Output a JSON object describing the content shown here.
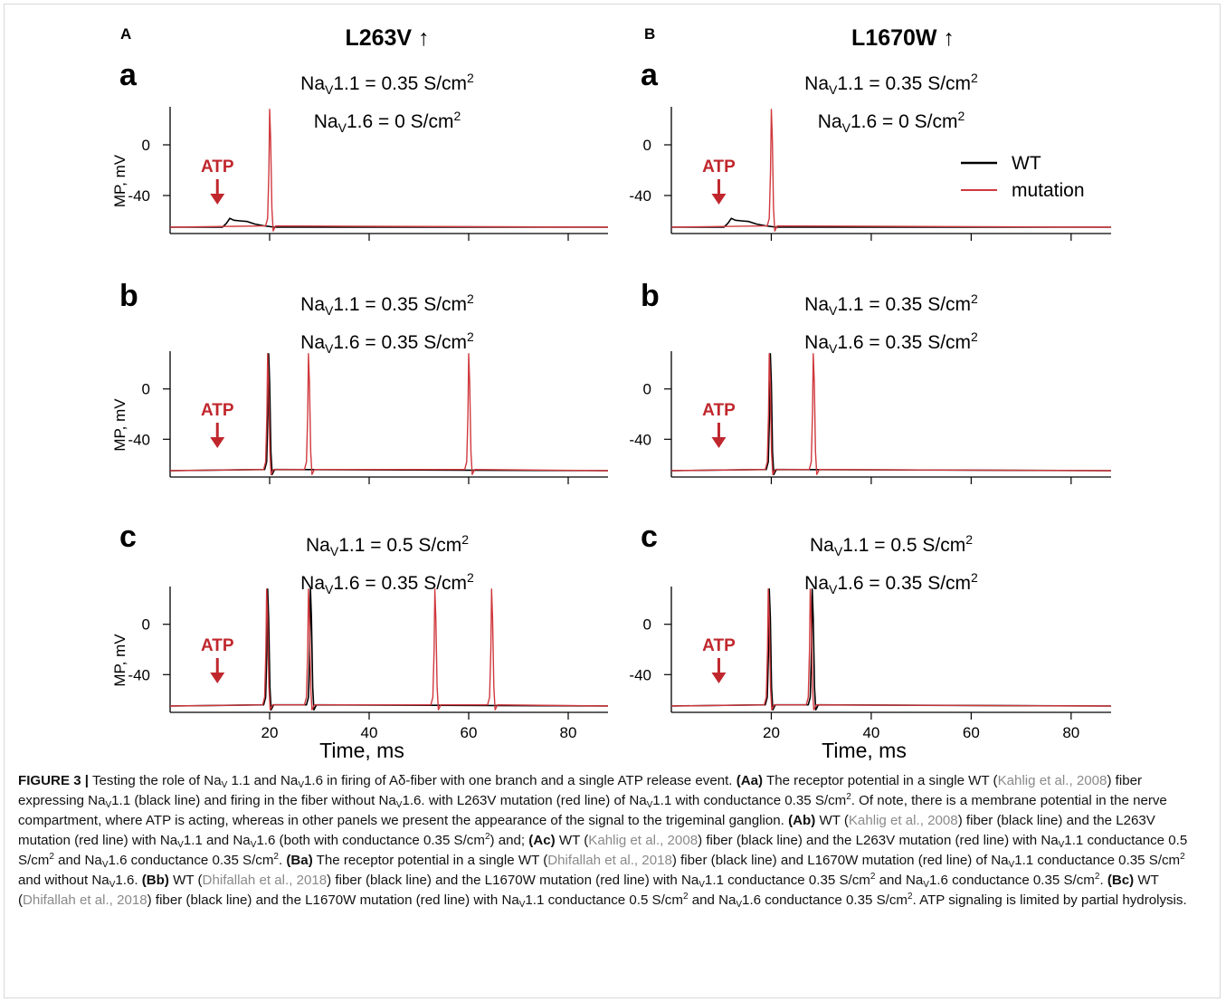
{
  "columns": [
    {
      "letter": "A",
      "mutation": "L263V"
    },
    {
      "letter": "B",
      "mutation": "L1670W"
    }
  ],
  "arrow_glyph": "↑",
  "row_letters": [
    "a",
    "b",
    "c"
  ],
  "conductance_labels": [
    {
      "nav11": "0.35",
      "nav16": "0"
    },
    {
      "nav11": "0.35",
      "nav16": "0.35"
    },
    {
      "nav11": "0.5",
      "nav16": "0.35"
    }
  ],
  "units": {
    "nav_prefix": "Na",
    "nav_sub": "V",
    "nav11_suffix": "1.1 = ",
    "nav16_suffix": "1.6 = ",
    "unit": " S/cm",
    "unit_sup": "2"
  },
  "atp_label": "ATP",
  "colors": {
    "wt": "#000000",
    "mutation": "#d0393e",
    "atp": "#c0272d"
  },
  "legend": {
    "wt": "WT",
    "mutation": "mutation"
  },
  "chart_data": [
    {
      "type": "line",
      "panel": "Aa",
      "xlabel": "",
      "ylabel": "MP, mV",
      "xlim": [
        0,
        88
      ],
      "ylim": [
        -70,
        30
      ],
      "xticks": [
        20,
        40,
        60,
        80
      ],
      "yticks": [
        0,
        -40
      ],
      "atp_time": 9.5,
      "rest": -65,
      "series": [
        {
          "name": "WT",
          "wt_bump": true,
          "spikes": []
        },
        {
          "name": "mutation",
          "spikes": [
            20
          ]
        }
      ]
    },
    {
      "type": "line",
      "panel": "Ab",
      "xlabel": "",
      "ylabel": "MP, mV",
      "xlim": [
        0,
        88
      ],
      "ylim": [
        -70,
        30
      ],
      "xticks": [
        20,
        40,
        60,
        80
      ],
      "yticks": [
        0,
        -40
      ],
      "atp_time": 9.5,
      "rest": -65,
      "series": [
        {
          "name": "WT",
          "spikes": [
            19.8
          ]
        },
        {
          "name": "mutation",
          "spikes": [
            19.6,
            27.8,
            60
          ]
        }
      ]
    },
    {
      "type": "line",
      "panel": "Ac",
      "xlabel": "Time, ms",
      "ylabel": "MP, mV",
      "xlim": [
        0,
        88
      ],
      "ylim": [
        -70,
        30
      ],
      "xticks": [
        20,
        40,
        60,
        80
      ],
      "yticks": [
        0,
        -40
      ],
      "atp_time": 9.5,
      "rest": -65,
      "series": [
        {
          "name": "WT",
          "spikes": [
            19.6,
            28.2
          ]
        },
        {
          "name": "mutation",
          "spikes": [
            19.4,
            27.8,
            53.2,
            64.6
          ]
        }
      ]
    },
    {
      "type": "line",
      "panel": "Ba",
      "xlabel": "",
      "ylabel": "",
      "xlim": [
        0,
        88
      ],
      "ylim": [
        -70,
        30
      ],
      "xticks": [
        20,
        40,
        60,
        80
      ],
      "yticks": [
        0,
        -40
      ],
      "atp_time": 9.5,
      "rest": -65,
      "series": [
        {
          "name": "WT",
          "wt_bump": true,
          "spikes": []
        },
        {
          "name": "mutation",
          "spikes": [
            20
          ]
        }
      ]
    },
    {
      "type": "line",
      "panel": "Bb",
      "xlabel": "",
      "ylabel": "",
      "xlim": [
        0,
        88
      ],
      "ylim": [
        -70,
        30
      ],
      "xticks": [
        20,
        40,
        60,
        80
      ],
      "yticks": [
        0,
        -40
      ],
      "atp_time": 9.5,
      "rest": -65,
      "series": [
        {
          "name": "WT",
          "spikes": [
            19.8
          ]
        },
        {
          "name": "mutation",
          "spikes": [
            19.6,
            28.4
          ]
        }
      ]
    },
    {
      "type": "line",
      "panel": "Bc",
      "xlabel": "Time, ms",
      "ylabel": "",
      "xlim": [
        0,
        88
      ],
      "ylim": [
        -70,
        30
      ],
      "xticks": [
        20,
        40,
        60,
        80
      ],
      "yticks": [
        0,
        -40
      ],
      "atp_time": 9.5,
      "rest": -65,
      "series": [
        {
          "name": "WT",
          "spikes": [
            19.6,
            28.2
          ]
        },
        {
          "name": "mutation",
          "spikes": [
            19.4,
            27.8
          ]
        }
      ]
    }
  ],
  "caption": {
    "figure_label": "FIGURE 3 |",
    "t1": " Testing the role of Na",
    "t2": " 1.1 and Na",
    "t3": "1.6 in firing of Aδ-fiber with one branch and a single ATP release event. ",
    "aa": "(Aa)",
    "t4": " The receptor potential in a single WT (",
    "ref_kahlig": "Kahlig et al., 2008",
    "t5": ") fiber expressing Na",
    "t6": "1.1 (black line) and firing in the fiber without Na",
    "t7": "1.6. with L263V mutation (red line) of Na",
    "t8": "1.1 with conductance 0.35 S/cm",
    "t9": ". Of note, there is a membrane potential in the nerve compartment, where ATP is acting, whereas in other panels we present the appearance of the signal to the trigeminal ganglion. ",
    "ab": "(Ab)",
    "t10": " WT (",
    "t11": ") fiber (black line) and the L263V mutation (red line) with Na",
    "t12": "1.1 and Na",
    "t13": "1.6 (both with conductance 0.35 S/cm",
    "t14": ") and; ",
    "ac": "(Ac)",
    "t15": ") fiber (black line) and the L263V mutation (red line) with Na",
    "t16": "1.1 conductance 0.5 S/cm",
    "t17": " and Na",
    "t18": "1.6 conductance 0.35 S/cm",
    "t19": ". ",
    "ba": "(Ba)",
    "t20": " The receptor potential in a single WT (",
    "ref_dhifallah": "Dhifallah et al., 2018",
    "t21": ") fiber (black line) and L1670W mutation (red line) of Na",
    "t22": "1.1 conductance 0.35 S/cm",
    "t23": " and without Na",
    "t24": "1.6. ",
    "bb": "(Bb)",
    "t25": ") fiber (black line) and the L1670W mutation (red line) with Na",
    "t26": "1.6 conductance 0.35 S/cm",
    "t27": ". ",
    "bc": "(Bc)",
    "t28": "1.6 conductance 0.35 S/cm",
    "t29": ". ATP signaling is limited by partial hydrolysis.",
    "sub_v": "V",
    "sup_2": "2"
  }
}
